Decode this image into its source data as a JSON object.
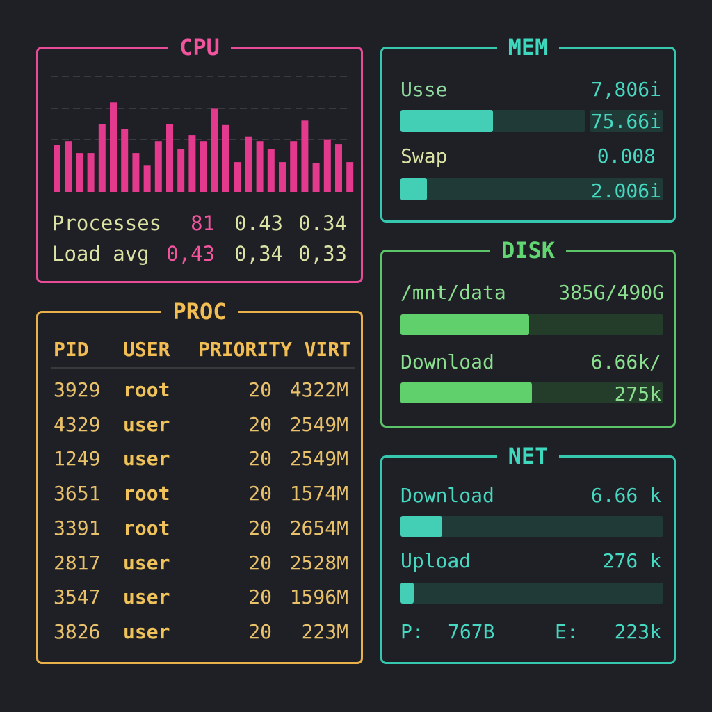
{
  "cpu": {
    "title": "CPU",
    "accent": "#e84c98",
    "bars": [
      0.52,
      0.56,
      0.43,
      0.43,
      0.75,
      0.99,
      0.7,
      0.43,
      0.29,
      0.56,
      0.75,
      0.47,
      0.63,
      0.56,
      0.92,
      0.74,
      0.33,
      0.61,
      0.56,
      0.47,
      0.33,
      0.56,
      0.79,
      0.32,
      0.58,
      0.53,
      0.33,
      0.68
    ],
    "rows": [
      {
        "label": "Processes",
        "v1": "81",
        "v2": "0.43",
        "v3": "0.34"
      },
      {
        "label": "Load avg",
        "v1": "0,43",
        "v2": "0,34",
        "v3": "0,33"
      }
    ]
  },
  "mem": {
    "title": "MEM",
    "accent": "#36c7b0",
    "use_label": "Usse",
    "use_value": "7,806i",
    "use_fill": 0.5,
    "use_total": "75.66i",
    "swap_label": "Swap",
    "swap_value": "0.008",
    "swap_fill": 0.1,
    "swap_total": "2.006i"
  },
  "disk": {
    "title": "DISK",
    "accent": "#5cc469",
    "mount_label": "/mnt/data",
    "mount_value": "385G/490G",
    "mount_fill": 0.49,
    "dl_label": "Download",
    "dl_value": "6.66k/",
    "dl_fill": 0.5,
    "dl_total": "275k"
  },
  "net": {
    "title": "NET",
    "accent": "#36c7b0",
    "dl_label": "Download",
    "dl_value": "6.66 k",
    "dl_fill": 0.16,
    "ul_label": "Upload",
    "ul_value": "276 k",
    "ul_fill": 0.05,
    "p_label": "P:",
    "p_value": "767B",
    "e_label": "E:",
    "e_value": "223k"
  },
  "proc": {
    "title": "PROC",
    "accent": "#e8b14a",
    "headers": {
      "pid": "PID",
      "user": "USER",
      "priority": "PRIORITY",
      "virt": "VIRT"
    },
    "rows": [
      {
        "pid": "3929",
        "user": "root",
        "pri": "20",
        "virt": "4322M"
      },
      {
        "pid": "4329",
        "user": "user",
        "pri": "20",
        "virt": "2549M"
      },
      {
        "pid": "1249",
        "user": "user",
        "pri": "20",
        "virt": "2549M"
      },
      {
        "pid": "3651",
        "user": "root",
        "pri": "20",
        "virt": "1574M"
      },
      {
        "pid": "3391",
        "user": "root",
        "pri": "20",
        "virt": "2654M"
      },
      {
        "pid": "2817",
        "user": "user",
        "pri": "20",
        "virt": "2528M"
      },
      {
        "pid": "3547",
        "user": "user",
        "pri": "20",
        "virt": "1596M"
      },
      {
        "pid": "3826",
        "user": "user",
        "pri": "20",
        "virt": "223M"
      }
    ]
  }
}
